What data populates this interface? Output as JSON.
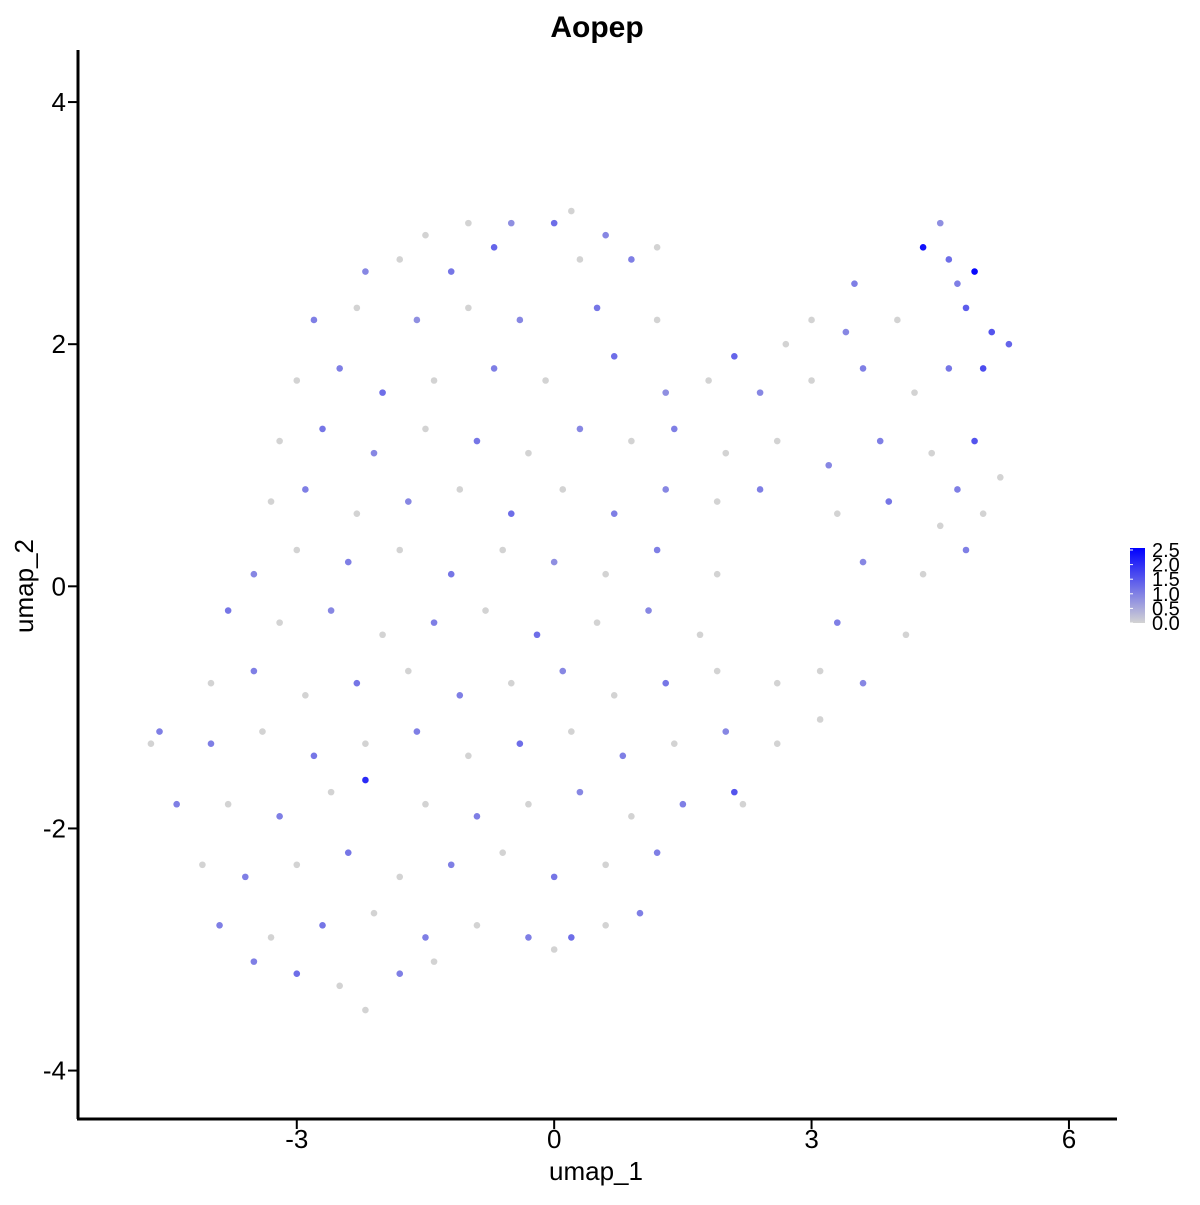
{
  "chart_data": {
    "type": "scatter",
    "title": "Aopep",
    "x_label": "umap_1",
    "y_label": "umap_2",
    "xlim": [
      -5.55,
      6.56
    ],
    "ylim": [
      -4.4,
      4.43
    ],
    "xticks": [
      -3,
      0,
      3,
      6
    ],
    "yticks": [
      -4,
      -2,
      0,
      2,
      4
    ],
    "color_low": "#d3d3d3",
    "color_high": "#0000ff",
    "color_lim": [
      0,
      2.5
    ],
    "color_ticks": [
      {
        "value": 0,
        "label": "0.0"
      },
      0.5,
      {
        "value": 1,
        "label": "1.0"
      },
      1.5,
      {
        "value": 2,
        "label": "2.0"
      },
      2.5
    ],
    "x": [
      -1.0,
      -0.5,
      0,
      0.2,
      0.6,
      -1.5,
      4.5,
      -2.2,
      -1.8,
      -1.2,
      -0.7,
      0.3,
      0.9,
      1.2,
      3.5,
      4.3,
      4.6,
      4.9,
      4.7,
      3.0,
      -2.8,
      -2.3,
      -1.6,
      -1.0,
      -0.4,
      0.5,
      1.2,
      2.1,
      2.7,
      3.4,
      4.0,
      4.8,
      5.1,
      5.3,
      -3.0,
      -2.5,
      -2.0,
      -1.4,
      -0.7,
      -0.1,
      0.7,
      1.3,
      1.8,
      2.4,
      3.0,
      3.6,
      4.2,
      4.6,
      5.0,
      -3.2,
      -2.7,
      -2.1,
      -1.5,
      -0.9,
      -0.3,
      0.3,
      0.9,
      1.4,
      2.0,
      2.6,
      3.2,
      3.8,
      4.4,
      4.9,
      5.2,
      -3.3,
      -2.9,
      -2.3,
      -1.7,
      -1.1,
      -0.5,
      0.1,
      0.7,
      1.3,
      1.9,
      2.4,
      3.3,
      3.9,
      4.5,
      5.0,
      4.7,
      -3.5,
      -3.0,
      -2.4,
      -1.8,
      -1.2,
      -0.6,
      0.0,
      0.6,
      1.2,
      1.9,
      3.6,
      4.3,
      4.8,
      -3.8,
      -3.2,
      -2.6,
      -2.0,
      -1.4,
      -0.8,
      -0.2,
      0.5,
      1.1,
      1.7,
      3.3,
      4.1,
      -4.0,
      -3.5,
      -2.9,
      -2.3,
      -1.7,
      -1.1,
      -0.5,
      0.1,
      0.7,
      1.3,
      1.9,
      2.6,
      3.1,
      3.6,
      -4.7,
      -4.6,
      -4.0,
      -3.4,
      -2.8,
      -2.2,
      -1.6,
      -1.0,
      -0.4,
      0.2,
      0.8,
      1.4,
      2.0,
      2.6,
      3.1,
      -4.4,
      -3.8,
      -3.2,
      -2.6,
      -2.2,
      -1.5,
      -0.9,
      -0.3,
      0.3,
      0.9,
      1.5,
      2.2,
      2.1,
      -4.1,
      -3.6,
      -3.0,
      -2.4,
      -1.8,
      -1.2,
      -0.6,
      0.0,
      0.6,
      1.2,
      -3.9,
      -3.3,
      -2.7,
      -2.1,
      -1.5,
      -0.9,
      -0.3,
      0.2,
      0.6,
      1.0,
      -3.5,
      -3.0,
      -2.5,
      -2.2,
      -1.4,
      -1.8,
      0.0
    ],
    "y": [
      3.0,
      3.0,
      3.0,
      3.1,
      2.9,
      2.9,
      3.0,
      2.6,
      2.7,
      2.6,
      2.8,
      2.7,
      2.7,
      2.8,
      2.5,
      2.8,
      2.7,
      2.6,
      2.5,
      2.2,
      2.2,
      2.3,
      2.2,
      2.3,
      2.2,
      2.3,
      2.2,
      1.9,
      2.0,
      2.1,
      2.2,
      2.3,
      2.1,
      2.0,
      1.7,
      1.8,
      1.6,
      1.7,
      1.8,
      1.7,
      1.9,
      1.6,
      1.7,
      1.6,
      1.7,
      1.8,
      1.6,
      1.8,
      1.8,
      1.2,
      1.3,
      1.1,
      1.3,
      1.2,
      1.1,
      1.3,
      1.2,
      1.3,
      1.1,
      1.2,
      1.0,
      1.2,
      1.1,
      1.2,
      0.9,
      0.7,
      0.8,
      0.6,
      0.7,
      0.8,
      0.6,
      0.8,
      0.6,
      0.8,
      0.7,
      0.8,
      0.6,
      0.7,
      0.5,
      0.6,
      0.8,
      0.1,
      0.3,
      0.2,
      0.3,
      0.1,
      0.3,
      0.2,
      0.1,
      0.3,
      0.1,
      0.2,
      0.1,
      0.3,
      -0.2,
      -0.3,
      -0.2,
      -0.4,
      -0.3,
      -0.2,
      -0.4,
      -0.3,
      -0.2,
      -0.4,
      -0.3,
      -0.4,
      -0.8,
      -0.7,
      -0.9,
      -0.8,
      -0.7,
      -0.9,
      -0.8,
      -0.7,
      -0.9,
      -0.8,
      -0.7,
      -0.8,
      -0.7,
      -0.8,
      -1.3,
      -1.2,
      -1.3,
      -1.2,
      -1.4,
      -1.3,
      -1.2,
      -1.4,
      -1.3,
      -1.2,
      -1.4,
      -1.3,
      -1.2,
      -1.3,
      -1.1,
      -1.8,
      -1.8,
      -1.9,
      -1.7,
      -1.6,
      -1.8,
      -1.9,
      -1.8,
      -1.7,
      -1.9,
      -1.8,
      -1.8,
      -1.7,
      -2.3,
      -2.4,
      -2.3,
      -2.2,
      -2.4,
      -2.3,
      -2.2,
      -2.4,
      -2.3,
      -2.2,
      -2.8,
      -2.9,
      -2.8,
      -2.7,
      -2.9,
      -2.8,
      -2.9,
      -2.9,
      -2.8,
      -2.7,
      -3.1,
      -3.2,
      -3.3,
      -3.5,
      -3.1,
      -3.2,
      -3.0
    ],
    "values": [
      0,
      0.8,
      1.2,
      0,
      0.9,
      0,
      0.8,
      0.9,
      0,
      1.1,
      1.3,
      0,
      1.0,
      0,
      1.0,
      2.3,
      1.2,
      2.4,
      1.0,
      0,
      1.0,
      0,
      0.8,
      0,
      0.9,
      1.1,
      0,
      1.3,
      0,
      0.9,
      0,
      1.4,
      1.5,
      1.3,
      0,
      1.0,
      1.2,
      0,
      1.0,
      0,
      1.2,
      0.8,
      0,
      0.9,
      0,
      1.0,
      0,
      1.1,
      1.6,
      0,
      1.1,
      0.9,
      0,
      1.1,
      0,
      0.9,
      0,
      1.0,
      0,
      0,
      0.9,
      1.0,
      0,
      1.5,
      0,
      0,
      1.0,
      0,
      0.9,
      0,
      1.2,
      0,
      1.0,
      0.9,
      0,
      1.0,
      0,
      1.1,
      0,
      0,
      1.0,
      0.9,
      0,
      1.0,
      0,
      1.1,
      0,
      0.8,
      0,
      1.0,
      0,
      0.9,
      0,
      1.0,
      1.1,
      0,
      0.9,
      0,
      1.0,
      0,
      1.2,
      0,
      0.9,
      0,
      1.0,
      0,
      0,
      1.0,
      0,
      1.1,
      0,
      1.0,
      0,
      0.9,
      0,
      1.1,
      0,
      0,
      0,
      0.9,
      0,
      1.0,
      1.0,
      0,
      1.1,
      0,
      1.0,
      0,
      1.2,
      0,
      1.0,
      0,
      0.9,
      0,
      0,
      1.0,
      0,
      1.0,
      0,
      2.0,
      0,
      1.0,
      0,
      0.9,
      0,
      1.0,
      0,
      1.5,
      0,
      1.0,
      0,
      1.1,
      0,
      1.0,
      0,
      1.1,
      0,
      1.0,
      1.0,
      0,
      1.1,
      0,
      1.0,
      0,
      1.0,
      1.2,
      0,
      1.0,
      1.0,
      1.2,
      0,
      0,
      0,
      1.0,
      0
    ]
  }
}
